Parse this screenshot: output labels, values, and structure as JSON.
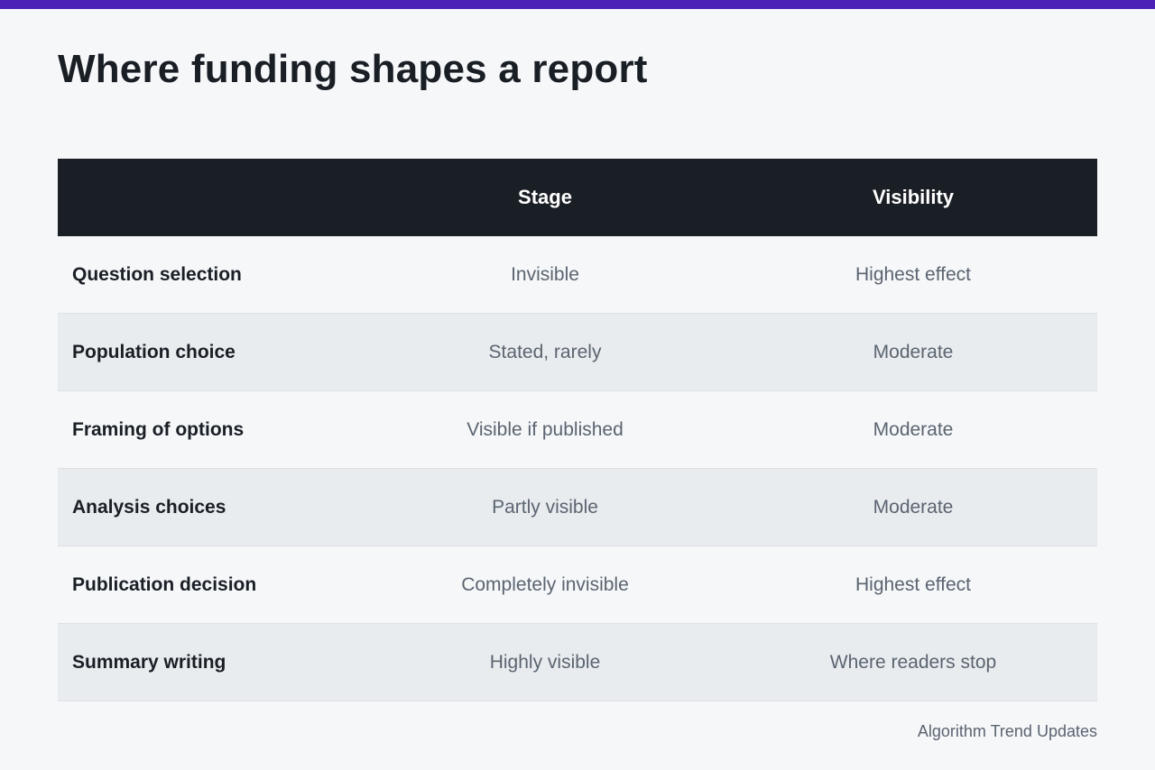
{
  "title": "Where funding shapes a report",
  "colors": {
    "accent_bar": "#4c21b8",
    "header_bg": "#1a1f26",
    "alt_row_bg": "#e8ecef",
    "page_bg": "#f5f7f9"
  },
  "table": {
    "columns": [
      "",
      "Stage",
      "Visibility"
    ],
    "rows": [
      {
        "label": "Question selection",
        "stage": "Invisible",
        "visibility": "Highest effect"
      },
      {
        "label": "Population choice",
        "stage": "Stated, rarely",
        "visibility": "Moderate"
      },
      {
        "label": "Framing of options",
        "stage": "Visible if published",
        "visibility": "Moderate"
      },
      {
        "label": "Analysis choices",
        "stage": "Partly visible",
        "visibility": "Moderate"
      },
      {
        "label": "Publication decision",
        "stage": "Completely invisible",
        "visibility": "Highest effect"
      },
      {
        "label": "Summary writing",
        "stage": "Highly visible",
        "visibility": "Where readers stop"
      }
    ]
  },
  "source": "Algorithm Trend Updates"
}
